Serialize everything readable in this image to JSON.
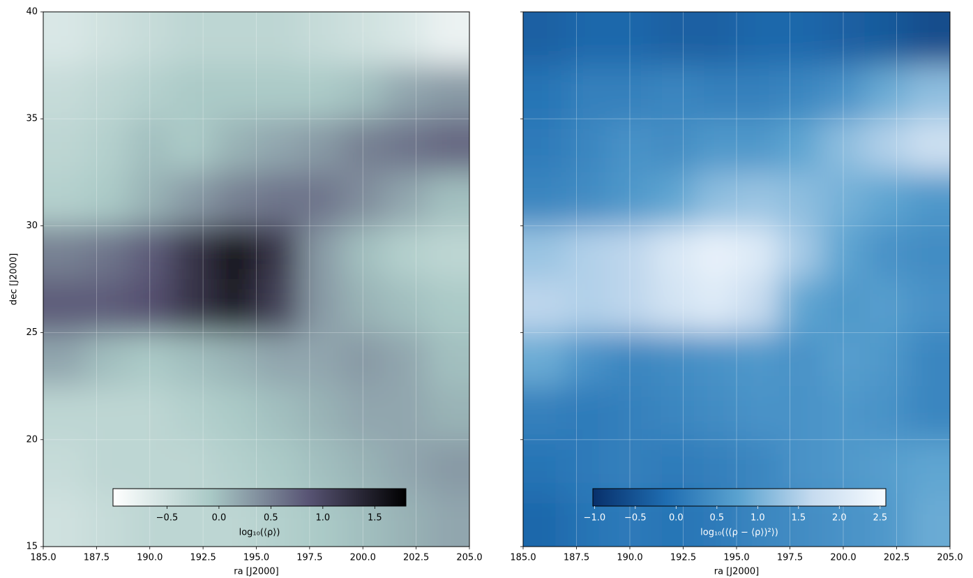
{
  "chart_data": [
    {
      "type": "heatmap",
      "xlabel": "ra [J2000]",
      "ylabel": "dec [J2000]",
      "xlim": [
        185,
        205
      ],
      "ylim": [
        15,
        40
      ],
      "xticks": [
        {
          "value": 185,
          "label": "185.0"
        },
        187.5,
        {
          "value": 190,
          "label": "190.0"
        },
        192.5,
        {
          "value": 195,
          "label": "195.0"
        },
        197.5,
        {
          "value": 200,
          "label": "200.0"
        },
        202.5,
        {
          "value": 205,
          "label": "205.0"
        }
      ],
      "yticks": [
        15,
        20,
        25,
        30,
        35,
        40
      ],
      "show_yticklabels": true,
      "grid": true,
      "x": [
        186,
        188,
        190,
        192,
        194,
        196,
        198,
        200,
        202,
        204
      ],
      "y": [
        38.75,
        36.25,
        33.75,
        31.25,
        28.75,
        26.25,
        23.75,
        21.25,
        18.75,
        16.25
      ],
      "values": [
        [
          -0.6,
          -0.5,
          -0.4,
          -0.3,
          -0.3,
          -0.3,
          -0.4,
          -0.5,
          -0.6,
          -0.8
        ],
        [
          -0.4,
          -0.3,
          -0.2,
          -0.1,
          -0.1,
          -0.1,
          -0.1,
          0.0,
          0.2,
          0.3
        ],
        [
          -0.3,
          -0.2,
          0.0,
          -0.1,
          0.1,
          0.2,
          0.3,
          0.5,
          0.6,
          0.7
        ],
        [
          -0.2,
          -0.1,
          0.1,
          0.3,
          0.5,
          0.6,
          0.6,
          0.4,
          0.2,
          0.0
        ],
        [
          0.5,
          0.6,
          0.8,
          1.2,
          1.6,
          1.2,
          0.3,
          0.0,
          -0.2,
          -0.3
        ],
        [
          0.8,
          0.8,
          0.9,
          1.2,
          1.5,
          1.1,
          0.3,
          0.1,
          0.0,
          -0.1
        ],
        [
          0.2,
          0.0,
          -0.1,
          0.0,
          0.1,
          0.2,
          0.2,
          0.3,
          0.2,
          0.0
        ],
        [
          -0.3,
          -0.3,
          -0.3,
          -0.2,
          -0.1,
          0.0,
          0.1,
          0.2,
          0.2,
          0.1
        ],
        [
          -0.4,
          -0.3,
          -0.3,
          -0.3,
          -0.2,
          -0.1,
          0.0,
          0.1,
          0.2,
          0.3
        ],
        [
          -0.5,
          -0.4,
          -0.3,
          -0.3,
          -0.3,
          -0.2,
          -0.1,
          0.0,
          0.1,
          0.2
        ]
      ],
      "colormap": "bone_r",
      "colors": [
        "#ffffff",
        "#a9c9c6",
        "#585474",
        "#000000"
      ],
      "clim": [
        -1.02,
        1.8
      ],
      "colorbar": {
        "label": "log₁₀(⟨ρ⟩)",
        "text_color": "#000000",
        "ticks": [
          {
            "value": -0.5,
            "label": "−0.5"
          },
          {
            "value": 0,
            "label": "0.0"
          },
          0.5,
          {
            "value": 1,
            "label": "1.0"
          },
          1.5
        ]
      }
    },
    {
      "type": "heatmap",
      "xlabel": "ra [J2000]",
      "xlim": [
        185,
        205
      ],
      "ylim": [
        15,
        40
      ],
      "xticks": [
        {
          "value": 185,
          "label": "185.0"
        },
        187.5,
        {
          "value": 190,
          "label": "190.0"
        },
        192.5,
        {
          "value": 195,
          "label": "195.0"
        },
        197.5,
        {
          "value": 200,
          "label": "200.0"
        },
        202.5,
        {
          "value": 205,
          "label": "205.0"
        }
      ],
      "yticks": [
        15,
        20,
        25,
        30,
        35,
        40
      ],
      "show_yticklabels": false,
      "grid": true,
      "x": [
        186,
        188,
        190,
        192,
        194,
        196,
        198,
        200,
        202,
        204
      ],
      "y": [
        38.75,
        36.25,
        33.75,
        31.25,
        28.75,
        26.25,
        23.75,
        21.25,
        18.75,
        16.25
      ],
      "values": [
        [
          -0.3,
          -0.2,
          -0.2,
          -0.3,
          -0.3,
          -0.2,
          -0.2,
          -0.3,
          -0.4,
          -0.6
        ],
        [
          0.0,
          0.2,
          0.2,
          0.3,
          0.2,
          0.2,
          0.3,
          0.5,
          0.9,
          1.2
        ],
        [
          0.1,
          0.3,
          0.5,
          0.4,
          0.6,
          0.6,
          0.8,
          1.2,
          1.5,
          1.8
        ],
        [
          0.3,
          0.4,
          0.6,
          0.8,
          1.2,
          1.3,
          1.2,
          1.0,
          0.8,
          0.6
        ],
        [
          1.3,
          1.5,
          1.6,
          2.0,
          2.3,
          2.1,
          1.4,
          0.8,
          0.5,
          0.4
        ],
        [
          1.6,
          1.5,
          1.6,
          1.9,
          2.1,
          1.7,
          0.8,
          0.6,
          0.7,
          0.5
        ],
        [
          0.9,
          0.5,
          0.3,
          0.4,
          0.5,
          0.6,
          0.5,
          0.7,
          0.6,
          0.3
        ],
        [
          0.2,
          0.1,
          0.2,
          0.3,
          0.4,
          0.5,
          0.5,
          0.6,
          0.5,
          0.3
        ],
        [
          0.0,
          0.1,
          0.2,
          0.1,
          0.2,
          0.3,
          0.5,
          0.6,
          0.7,
          0.8
        ],
        [
          -0.2,
          0.0,
          0.1,
          0.0,
          0.1,
          0.3,
          0.4,
          0.5,
          0.6,
          0.9
        ]
      ],
      "colormap": "Blues_r",
      "colors": [
        "#08306b",
        "#1f6db1",
        "#5ba3d0",
        "#c6dbef",
        "#f7fbff"
      ],
      "clim": [
        -1.02,
        2.57
      ],
      "colorbar": {
        "label": "log₁₀(⟨(ρ − ⟨ρ⟩)²⟩)",
        "text_color": "#ffffff",
        "ticks": [
          {
            "value": -1,
            "label": "−1.0"
          },
          {
            "value": -0.5,
            "label": "−0.5"
          },
          {
            "value": 0,
            "label": "0.0"
          },
          0.5,
          {
            "value": 1,
            "label": "1.0"
          },
          1.5,
          {
            "value": 2,
            "label": "2.0"
          },
          2.5
        ]
      }
    }
  ]
}
